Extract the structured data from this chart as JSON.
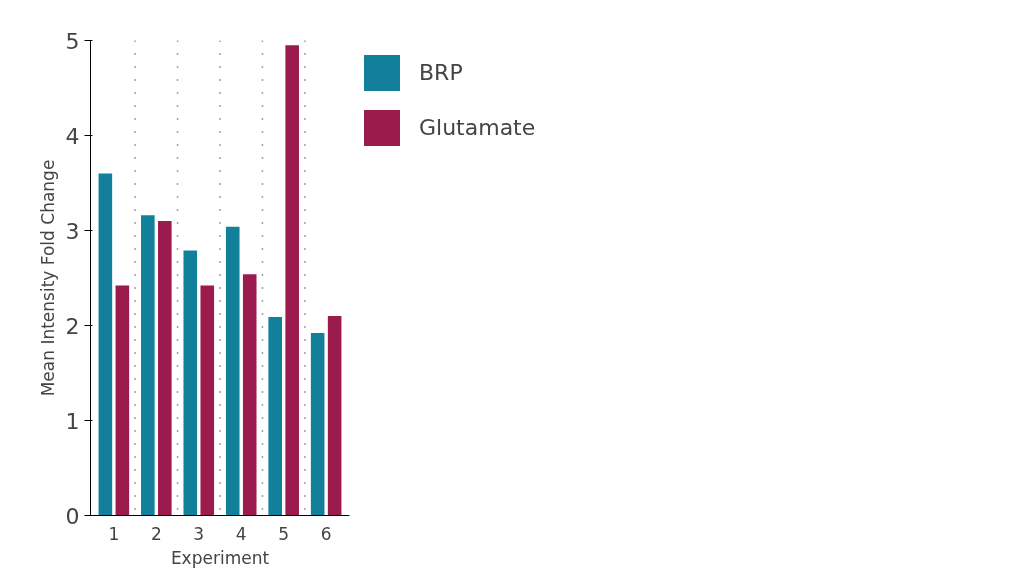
{
  "chart_data": {
    "type": "bar",
    "xlabel": "Experiment",
    "ylabel": "Mean Intensity Fold Change",
    "categories": [
      "1",
      "2",
      "3",
      "4",
      "5",
      "6"
    ],
    "series": [
      {
        "name": "BRP",
        "color": "#127f9b",
        "values": [
          3.6,
          3.16,
          2.79,
          3.04,
          2.09,
          1.92
        ]
      },
      {
        "name": "Glutamate",
        "color": "#9b1b4f",
        "values": [
          2.42,
          3.1,
          2.42,
          2.54,
          4.95,
          2.1
        ]
      }
    ],
    "ylim": [
      0,
      5
    ],
    "yticks": [
      0,
      1,
      2,
      3,
      4,
      5
    ],
    "grid": "x",
    "legend": "top right"
  }
}
